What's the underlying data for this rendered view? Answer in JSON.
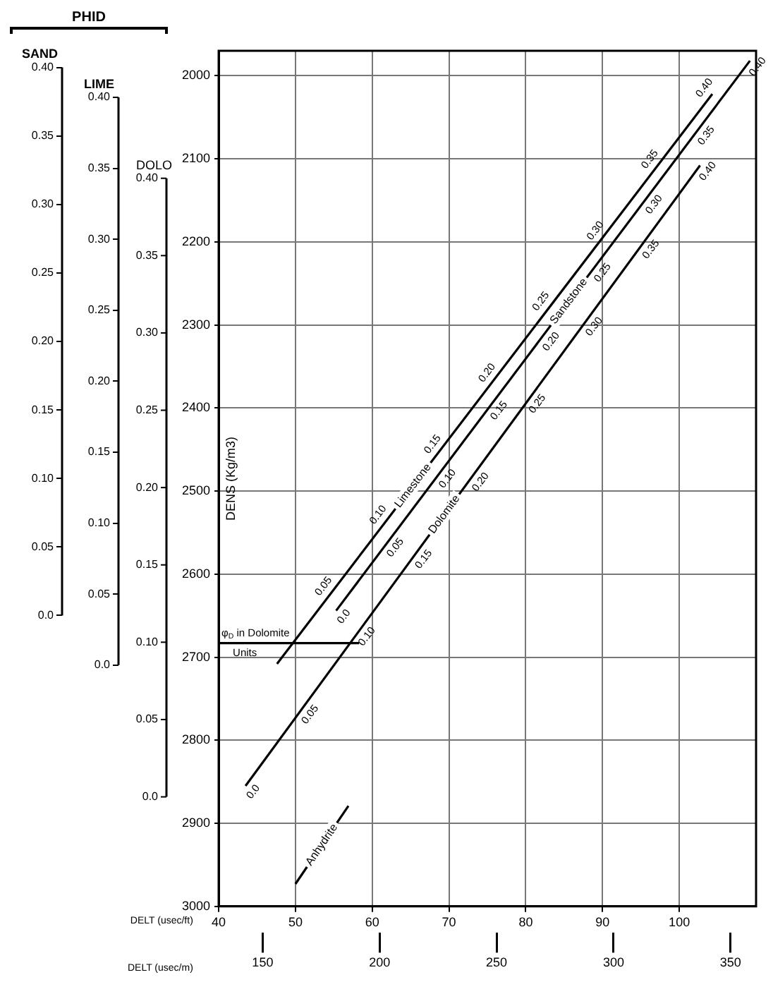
{
  "chart_data": {
    "type": "line",
    "xlabel": "DELT (usec/ft)",
    "x2label": "DELT (usec/m)",
    "ylabel": "DENS (Kg/m3)",
    "y2label": "SAND",
    "y3label": "LIME",
    "series": [
      {
        "name": "Limestone",
        "color": "#000000",
        "x": [
          47.6,
          104.3
        ],
        "values": [
          2708,
          2022
        ]
      },
      {
        "name": "Sandstone",
        "color": "#000000",
        "x": [
          55.3,
          109.2
        ],
        "values": [
          2644,
          1982
        ]
      },
      {
        "name": "Dolomite",
        "color": "#000000",
        "x": [
          43.5,
          102.7
        ],
        "values": [
          2855,
          2108
        ]
      },
      {
        "name": "Anhydrite",
        "color": "#000000",
        "x": [
          50.0,
          56.9
        ],
        "values": [
          2973,
          2879
        ]
      },
      {
        "name": "φ$_{D}$ in Dolomite Units",
        "color": "#000000",
        "x": [
          40,
          58.3
        ],
        "values": [
          2683,
          2683
        ]
      }
    ],
    "xlim": [
      40,
      110
    ],
    "xticks": [
      40,
      50,
      60,
      70,
      80,
      90,
      100
    ],
    "x2lim": [
      131.2,
      360.9
    ],
    "x2ticks": [
      150,
      200,
      250,
      300,
      350
    ],
    "ylim": [
      3000,
      1970
    ],
    "yticks": [
      2000,
      2100,
      2200,
      2300,
      2400,
      2500,
      2600,
      2700,
      2800,
      2900,
      3000
    ],
    "y2lim": [
      0,
      0.4
    ],
    "y2ticks": [
      {
        "value": 0,
        "label": "0.0"
      },
      {
        "value": 0.05,
        "label": "0.05"
      },
      {
        "value": 0.1,
        "label": "0.10"
      },
      {
        "value": 0.15,
        "label": "0.15"
      },
      {
        "value": 0.2,
        "label": "0.20"
      },
      {
        "value": 0.25,
        "label": "0.25"
      },
      {
        "value": 0.3,
        "label": "0.30"
      },
      {
        "value": 0.35,
        "label": "0.35"
      },
      {
        "value": 0.4,
        "label": "0.40"
      }
    ],
    "y3lim": [
      0,
      0.4
    ],
    "y3ticks": [
      {
        "value": 0,
        "label": "0.0"
      },
      {
        "value": 0.05,
        "label": "0.05"
      },
      {
        "value": 0.1,
        "label": "0.10"
      },
      {
        "value": 0.15,
        "label": "0.15"
      },
      {
        "value": 0.2,
        "label": "0.20"
      },
      {
        "value": 0.25,
        "label": "0.25"
      },
      {
        "value": 0.3,
        "label": "0.30"
      },
      {
        "value": 0.35,
        "label": "0.35"
      },
      {
        "value": 0.4,
        "label": "0.40"
      }
    ],
    "grid": true,
    "line_style": "solid",
    "annotations": [
      "PHID",
      "DOLO",
      "0.0",
      "0.05",
      "0.10",
      "0.15",
      "0.20",
      "0.25",
      "0.30",
      "0.35",
      "0.40",
      {
        "text": "0.05",
        "x": 54.7,
        "y": 2622
      },
      {
        "text": "0.10",
        "x": 61.8,
        "y": 2536
      },
      {
        "text": "0.15",
        "x": 68.9,
        "y": 2451
      },
      {
        "text": "0.20",
        "x": 76.0,
        "y": 2365
      },
      {
        "text": "0.25",
        "x": 83.0,
        "y": 2279
      },
      {
        "text": "0.30",
        "x": 90.1,
        "y": 2194
      },
      {
        "text": "0.35",
        "x": 97.2,
        "y": 2108
      },
      {
        "text": "0.40",
        "x": 104.3,
        "y": 2022
      },
      {
        "text": "0.0",
        "x": 55.3,
        "y": 2644
      },
      {
        "text": "0.05",
        "x": 62.0,
        "y": 2561
      },
      {
        "text": "0.10",
        "x": 68.8,
        "y": 2478
      },
      {
        "text": "0.15",
        "x": 75.5,
        "y": 2396
      },
      {
        "text": "0.20",
        "x": 82.3,
        "y": 2313
      },
      {
        "text": "0.25",
        "x": 89.0,
        "y": 2230
      },
      {
        "text": "0.30",
        "x": 95.7,
        "y": 2148
      },
      {
        "text": "0.35",
        "x": 102.5,
        "y": 2065
      },
      {
        "text": "0.40",
        "x": 109.2,
        "y": 1982
      },
      {
        "text": "0.0",
        "x": 43.5,
        "y": 2855
      },
      {
        "text": "0.05",
        "x": 50.9,
        "y": 2762
      },
      {
        "text": "0.10",
        "x": 58.3,
        "y": 2668
      },
      {
        "text": "0.15",
        "x": 65.7,
        "y": 2575
      },
      {
        "text": "0.20",
        "x": 73.1,
        "y": 2482
      },
      {
        "text": "0.25",
        "x": 80.5,
        "y": 2388
      },
      {
        "text": "0.30",
        "x": 87.9,
        "y": 2295
      },
      {
        "text": "0.35",
        "x": 95.3,
        "y": 2202
      },
      {
        "text": "0.40",
        "x": 102.7,
        "y": 2108
      }
    ]
  }
}
